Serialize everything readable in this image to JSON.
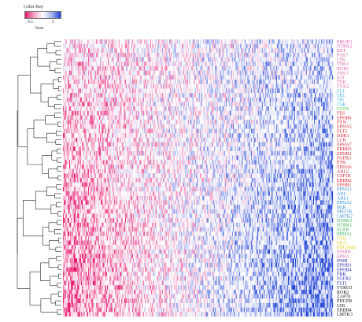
{
  "color_key": {
    "title": "Color Key",
    "tick_low": "0.5",
    "tick_high": "2",
    "xlabel": "Value",
    "colors": {
      "low": "#e8176e",
      "mid": "#ffffff",
      "high": "#2245d6"
    }
  },
  "chart_data": {
    "type": "heatmap",
    "title": "",
    "xlabel": "",
    "ylabel": "",
    "row_dendrogram": true,
    "value_range": [
      0.5,
      2
    ],
    "rows": [
      {
        "label": "PIK3R1",
        "color": "#e05aa6"
      },
      {
        "label": "NTRK2",
        "color": "#e05aa6"
      },
      {
        "label": "RET",
        "color": "#e05aa6"
      },
      {
        "label": "PTK7",
        "color": "#e05aa6"
      },
      {
        "label": "LTK",
        "color": "#e05aa6"
      },
      {
        "label": "TNK1",
        "color": "#e05aa6"
      },
      {
        "label": "ROR1",
        "color": "#e05aa6"
      },
      {
        "label": "JAK3",
        "color": "#e05aa6"
      },
      {
        "label": "KIT",
        "color": "#e05aa6"
      },
      {
        "label": "TEK",
        "color": "#e05aa6"
      },
      {
        "label": "TYK2",
        "color": "#e05aa6"
      },
      {
        "label": "FLT",
        "color": "#33b0e8"
      },
      {
        "label": "TEC",
        "color": "#33b0e8"
      },
      {
        "label": "TIE",
        "color": "#33b0e8"
      },
      {
        "label": "CSK",
        "color": "#33b0e8"
      },
      {
        "label": "EGFR",
        "color": "#5ac85a"
      },
      {
        "label": "FES",
        "color": "#d41c2c"
      },
      {
        "label": "EPHB6",
        "color": "#d41c2c"
      },
      {
        "label": "FYN",
        "color": "#d41c2c"
      },
      {
        "label": "EPHA5",
        "color": "#d41c2c"
      },
      {
        "label": "FLT3",
        "color": "#d41c2c"
      },
      {
        "label": "DDR1",
        "color": "#d41c2c"
      },
      {
        "label": "LCK",
        "color": "#d41c2c"
      },
      {
        "label": "EPHA7",
        "color": "#d41c2c"
      },
      {
        "label": "ERBB3",
        "color": "#d41c2c"
      },
      {
        "label": "EPHB2",
        "color": "#d41c2c"
      },
      {
        "label": "FGFR3",
        "color": "#d41c2c"
      },
      {
        "label": "PTK",
        "color": "#d41c2c"
      },
      {
        "label": "EPHA6",
        "color": "#d41c2c"
      },
      {
        "label": "ABL2",
        "color": "#d41c2c"
      },
      {
        "label": "CSF1R",
        "color": "#d41c2c"
      },
      {
        "label": "ERBB2",
        "color": "#d41c2c"
      },
      {
        "label": "EPHB1",
        "color": "#d41c2c"
      },
      {
        "label": "EPHA3",
        "color": "#2a8ad4"
      },
      {
        "label": "AXL",
        "color": "#2a8ad4"
      },
      {
        "label": "ABL1",
        "color": "#2a8ad4"
      },
      {
        "label": "EPHA2",
        "color": "#2a8ad4"
      },
      {
        "label": "BLK",
        "color": "#2a8ad4"
      },
      {
        "label": "MST1R",
        "color": "#2a8ad4"
      },
      {
        "label": "LMTK2",
        "color": "#2a8ad4"
      },
      {
        "label": "NTRK3",
        "color": "#2aa84a"
      },
      {
        "label": "NTRK1",
        "color": "#2aa84a"
      },
      {
        "label": "EGFR",
        "color": "#2aa84a"
      },
      {
        "label": "EPHA1",
        "color": "#2aa84a"
      },
      {
        "label": "SYK",
        "color": "#e8d020"
      },
      {
        "label": "MET",
        "color": "#e8d020"
      },
      {
        "label": "PDGFRB",
        "color": "#e8d020"
      },
      {
        "label": "INSRR",
        "color": "#e05aa6"
      },
      {
        "label": "EPHA",
        "color": "#e05aa6"
      },
      {
        "label": "INSR",
        "color": "#2222aa"
      },
      {
        "label": "EPHB3",
        "color": "#2222aa"
      },
      {
        "label": "EPHB4",
        "color": "#2222aa"
      },
      {
        "label": "FRK",
        "color": "#2222aa"
      },
      {
        "label": "FGFR2",
        "color": "#2222aa"
      },
      {
        "label": "FLT1",
        "color": "#2222aa"
      },
      {
        "label": "TYRO3",
        "color": "#111111"
      },
      {
        "label": "ROR2",
        "color": "#111111"
      },
      {
        "label": "ZAP70",
        "color": "#111111"
      },
      {
        "label": "PDGFR",
        "color": "#111111"
      },
      {
        "label": "LTK",
        "color": "#111111"
      },
      {
        "label": "ERBB4",
        "color": "#111111"
      },
      {
        "label": "LMTK3",
        "color": "#111111"
      }
    ]
  }
}
